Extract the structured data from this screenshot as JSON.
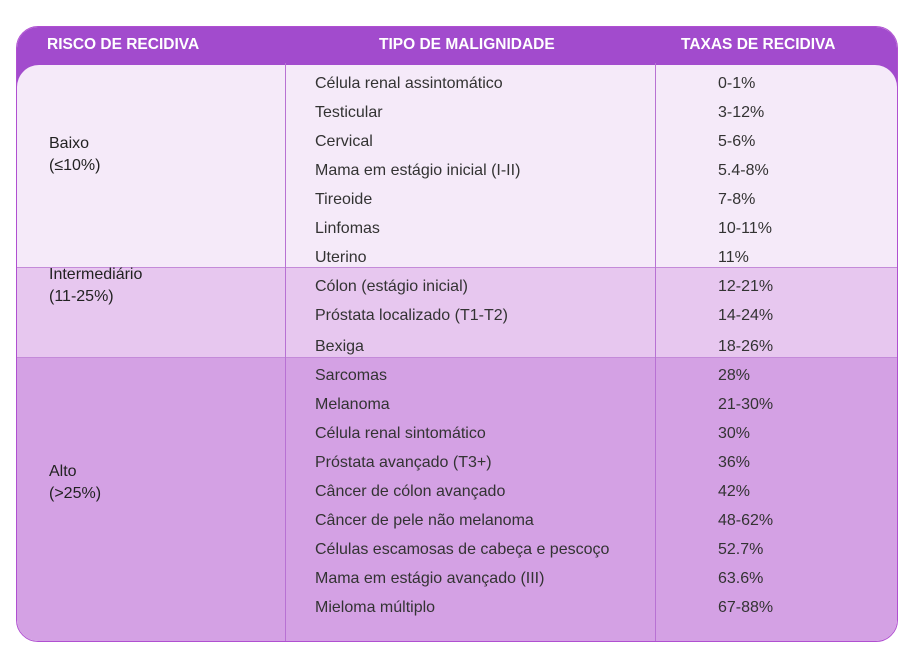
{
  "header": {
    "risk": "RISCO DE RECIDIVA",
    "type": "TIPO DE MALIGNIDADE",
    "rate": "TAXAS DE RECIDIVA"
  },
  "groups": [
    {
      "name": "Baixo",
      "range": "(≤10%)",
      "rows": [
        {
          "type": "Célula renal assintomático",
          "rate": "0-1%"
        },
        {
          "type": "Testicular",
          "rate": "3-12%"
        },
        {
          "type": "Cervical",
          "rate": "5-6%"
        },
        {
          "type": "Mama em estágio inicial (I-II)",
          "rate": "5.4-8%"
        },
        {
          "type": "Tireoide",
          "rate": "7-8%"
        },
        {
          "type": "Linfomas",
          "rate": "10-11%"
        }
      ]
    },
    {
      "name": "Intermediário",
      "range": "(11-25%)",
      "rows": [
        {
          "type": "Uterino",
          "rate": "11%"
        },
        {
          "type": "Cólon (estágio inicial)",
          "rate": "12-21%"
        },
        {
          "type": "Próstata localizado (T1-T2)",
          "rate": "14-24%"
        }
      ]
    },
    {
      "name": "Alto",
      "range": "(>25%)",
      "rows": [
        {
          "type": "Bexiga",
          "rate": "18-26%"
        },
        {
          "type": "Sarcomas",
          "rate": "28%"
        },
        {
          "type": "Melanoma",
          "rate": "21-30%"
        },
        {
          "type": "Célula renal sintomático",
          "rate": "30%"
        },
        {
          "type": "Próstata avançado (T3+)",
          "rate": "36%"
        },
        {
          "type": "Câncer de cólon avançado",
          "rate": "42%"
        },
        {
          "type": "Câncer de pele não melanoma",
          "rate": "48-62%"
        },
        {
          "type": "Células escamosas de cabeça e pescoço",
          "rate": "52.7%"
        },
        {
          "type": "Mama em estágio avançado (III)",
          "rate": "63.6%"
        },
        {
          "type": "Mieloma múltiplo",
          "rate": "67-88%"
        }
      ]
    }
  ]
}
